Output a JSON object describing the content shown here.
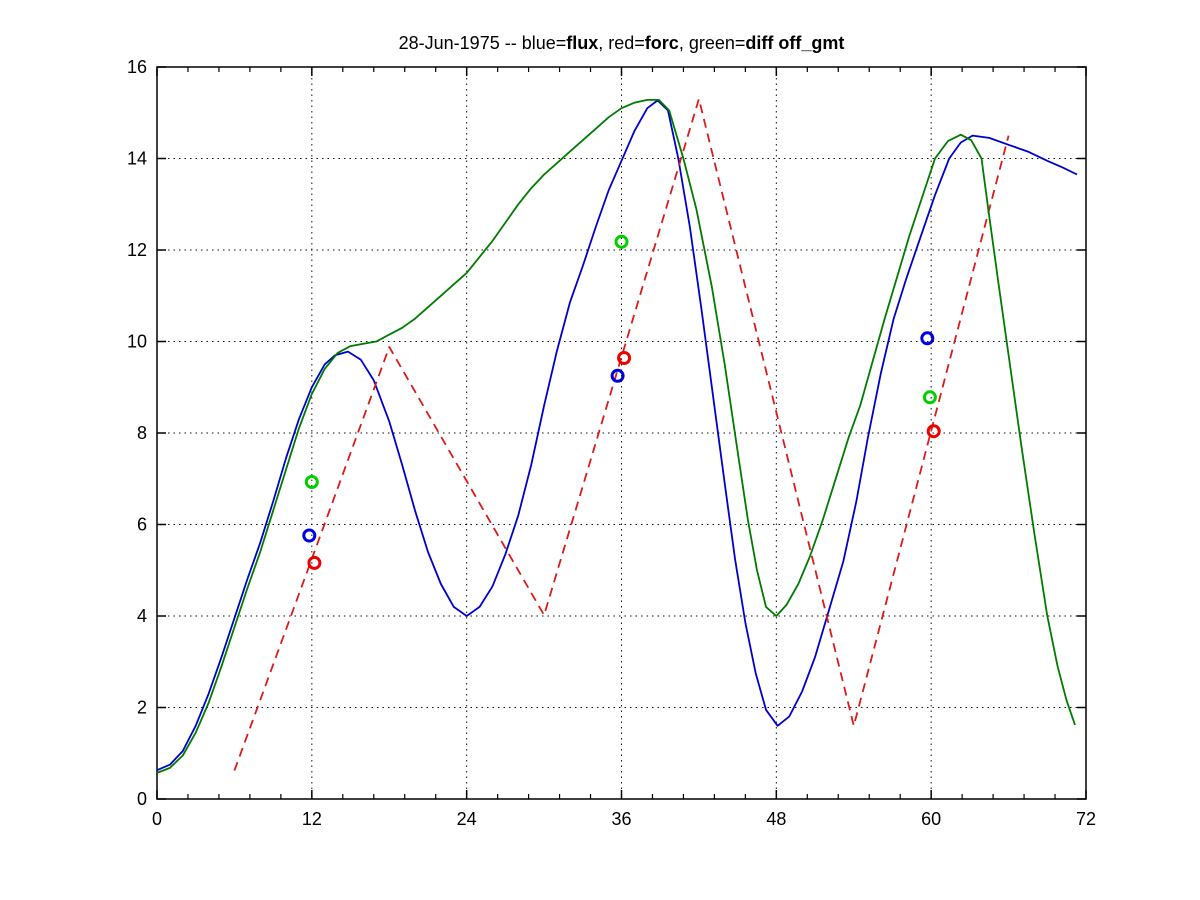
{
  "title": {
    "segments": [
      {
        "text": "28-Jun-1975 -- blue=",
        "bold": false
      },
      {
        "text": "flux",
        "bold": true
      },
      {
        "text": ", red=",
        "bold": false
      },
      {
        "text": "forc",
        "bold": true
      },
      {
        "text": ", green=",
        "bold": false
      },
      {
        "text": "diff off_gmt",
        "bold": true
      }
    ]
  },
  "chart_data": {
    "type": "line",
    "title": "28-Jun-1975 -- blue=flux, red=forc, green=diff off_gmt",
    "xlabel": "",
    "ylabel": "",
    "xlim": [
      0,
      72
    ],
    "ylim": [
      0,
      16
    ],
    "x_ticks": [
      0,
      12,
      24,
      36,
      48,
      60,
      72
    ],
    "x_tick_labels": [
      "0",
      "12",
      "24",
      "36",
      "48",
      "60",
      "72"
    ],
    "x_minor_step": 2.4,
    "y_ticks": [
      0,
      2,
      4,
      6,
      8,
      10,
      12,
      14,
      16
    ],
    "y_tick_labels": [
      "0",
      "2",
      "4",
      "6",
      "8",
      "10",
      "12",
      "14",
      "16"
    ],
    "grid": "dotted",
    "grid_color": "#111111",
    "axis_color": "#000000",
    "legend_position": "none (legend encoded in title)",
    "series": [
      {
        "name": "flux",
        "color": "#0000cc",
        "style": "solid",
        "points": [
          [
            0,
            0.63
          ],
          [
            1,
            0.75
          ],
          [
            2,
            1.05
          ],
          [
            3,
            1.6
          ],
          [
            4,
            2.3
          ],
          [
            5,
            3.1
          ],
          [
            6,
            3.95
          ],
          [
            7,
            4.8
          ],
          [
            8,
            5.6
          ],
          [
            9,
            6.5
          ],
          [
            10,
            7.45
          ],
          [
            11,
            8.3
          ],
          [
            12,
            9.0
          ],
          [
            13,
            9.5
          ],
          [
            13.8,
            9.7
          ],
          [
            14.8,
            9.78
          ],
          [
            15.8,
            9.6
          ],
          [
            16.8,
            9.15
          ],
          [
            18,
            8.25
          ],
          [
            19,
            7.3
          ],
          [
            20,
            6.3
          ],
          [
            21,
            5.4
          ],
          [
            22,
            4.7
          ],
          [
            23,
            4.2
          ],
          [
            24,
            4.0
          ],
          [
            25,
            4.2
          ],
          [
            26,
            4.65
          ],
          [
            27,
            5.35
          ],
          [
            28,
            6.2
          ],
          [
            29,
            7.3
          ],
          [
            30,
            8.6
          ],
          [
            31,
            9.8
          ],
          [
            32,
            10.85
          ],
          [
            33,
            11.65
          ],
          [
            34,
            12.5
          ],
          [
            35,
            13.3
          ],
          [
            36,
            13.95
          ],
          [
            37,
            14.6
          ],
          [
            38,
            15.1
          ],
          [
            38.8,
            15.27
          ],
          [
            39.6,
            15.05
          ],
          [
            40.4,
            14.0
          ],
          [
            41.3,
            12.5
          ],
          [
            42.2,
            10.7
          ],
          [
            43.1,
            8.8
          ],
          [
            44,
            6.9
          ],
          [
            44.8,
            5.25
          ],
          [
            45.6,
            3.85
          ],
          [
            46.4,
            2.75
          ],
          [
            47.2,
            1.95
          ],
          [
            48.1,
            1.6
          ],
          [
            49,
            1.8
          ],
          [
            50,
            2.35
          ],
          [
            51,
            3.1
          ],
          [
            52,
            4.05
          ],
          [
            53.2,
            5.2
          ],
          [
            54.2,
            6.5
          ],
          [
            55.1,
            7.9
          ],
          [
            56.1,
            9.3
          ],
          [
            57.1,
            10.5
          ],
          [
            58.1,
            11.4
          ],
          [
            59.2,
            12.3
          ],
          [
            60.3,
            13.2
          ],
          [
            61.4,
            14.0
          ],
          [
            62.3,
            14.35
          ],
          [
            63.2,
            14.5
          ],
          [
            64.5,
            14.45
          ],
          [
            66,
            14.3
          ],
          [
            67.5,
            14.15
          ],
          [
            69,
            13.95
          ],
          [
            70.2,
            13.8
          ],
          [
            71.3,
            13.65
          ]
        ]
      },
      {
        "name": "forc",
        "color": "#dd1a1a",
        "style": "dashed",
        "points": [
          [
            6,
            0.62
          ],
          [
            18,
            9.88
          ],
          [
            30,
            4.02
          ],
          [
            42,
            15.3
          ],
          [
            54,
            1.6
          ],
          [
            66,
            14.5
          ]
        ]
      },
      {
        "name": "diff",
        "color": "#007b00",
        "style": "solid",
        "points": [
          [
            0,
            0.57
          ],
          [
            1,
            0.68
          ],
          [
            2,
            0.95
          ],
          [
            3,
            1.45
          ],
          [
            4,
            2.1
          ],
          [
            5,
            2.9
          ],
          [
            6,
            3.75
          ],
          [
            7,
            4.6
          ],
          [
            8,
            5.4
          ],
          [
            9,
            6.3
          ],
          [
            10,
            7.2
          ],
          [
            11,
            8.1
          ],
          [
            12,
            8.85
          ],
          [
            13,
            9.4
          ],
          [
            14,
            9.75
          ],
          [
            15,
            9.9
          ],
          [
            16,
            9.95
          ],
          [
            17,
            10.0
          ],
          [
            18,
            10.15
          ],
          [
            19,
            10.3
          ],
          [
            20,
            10.5
          ],
          [
            21,
            10.75
          ],
          [
            22,
            11.0
          ],
          [
            23,
            11.25
          ],
          [
            24,
            11.5
          ],
          [
            25,
            11.85
          ],
          [
            26,
            12.2
          ],
          [
            27,
            12.6
          ],
          [
            28,
            13.0
          ],
          [
            29,
            13.35
          ],
          [
            30,
            13.65
          ],
          [
            31,
            13.9
          ],
          [
            32,
            14.15
          ],
          [
            33,
            14.4
          ],
          [
            34,
            14.65
          ],
          [
            35,
            14.9
          ],
          [
            36,
            15.1
          ],
          [
            37,
            15.22
          ],
          [
            38,
            15.28
          ],
          [
            38.9,
            15.28
          ],
          [
            39.7,
            15.05
          ],
          [
            40.8,
            14.0
          ],
          [
            41.8,
            12.9
          ],
          [
            43,
            11.2
          ],
          [
            44,
            9.5
          ],
          [
            45,
            7.6
          ],
          [
            45.8,
            6.1
          ],
          [
            46.5,
            5.0
          ],
          [
            47.2,
            4.2
          ],
          [
            48,
            4.0
          ],
          [
            48.8,
            4.25
          ],
          [
            49.7,
            4.7
          ],
          [
            50.6,
            5.3
          ],
          [
            51.6,
            6.1
          ],
          [
            52.6,
            7.0
          ],
          [
            53.6,
            7.9
          ],
          [
            54.5,
            8.6
          ],
          [
            55.5,
            9.6
          ],
          [
            56.4,
            10.5
          ],
          [
            57.3,
            11.35
          ],
          [
            58.3,
            12.3
          ],
          [
            59.3,
            13.15
          ],
          [
            60.3,
            14.0
          ],
          [
            61.3,
            14.38
          ],
          [
            62.3,
            14.52
          ],
          [
            63.1,
            14.4
          ],
          [
            63.9,
            14.0
          ],
          [
            64.4,
            12.95
          ],
          [
            65.2,
            11.3
          ],
          [
            66,
            9.7
          ],
          [
            67,
            7.7
          ],
          [
            68,
            5.8
          ],
          [
            69,
            4.0
          ],
          [
            69.8,
            2.9
          ],
          [
            70.5,
            2.15
          ],
          [
            71.15,
            1.62
          ]
        ]
      }
    ],
    "markers": [
      {
        "name": "flux-obs",
        "color": "#0000dd",
        "shape": "open-circle",
        "points": [
          [
            11.8,
            5.76
          ],
          [
            35.7,
            9.25
          ],
          [
            59.7,
            10.07
          ]
        ]
      },
      {
        "name": "forc-obs",
        "color": "#ee0000",
        "shape": "open-circle",
        "points": [
          [
            12.2,
            5.16
          ],
          [
            36.2,
            9.64
          ],
          [
            60.2,
            8.04
          ]
        ]
      },
      {
        "name": "diff-obs",
        "color": "#00d000",
        "shape": "open-circle",
        "points": [
          [
            12.0,
            6.93
          ],
          [
            36.0,
            12.18
          ],
          [
            59.9,
            8.78
          ]
        ]
      }
    ]
  }
}
